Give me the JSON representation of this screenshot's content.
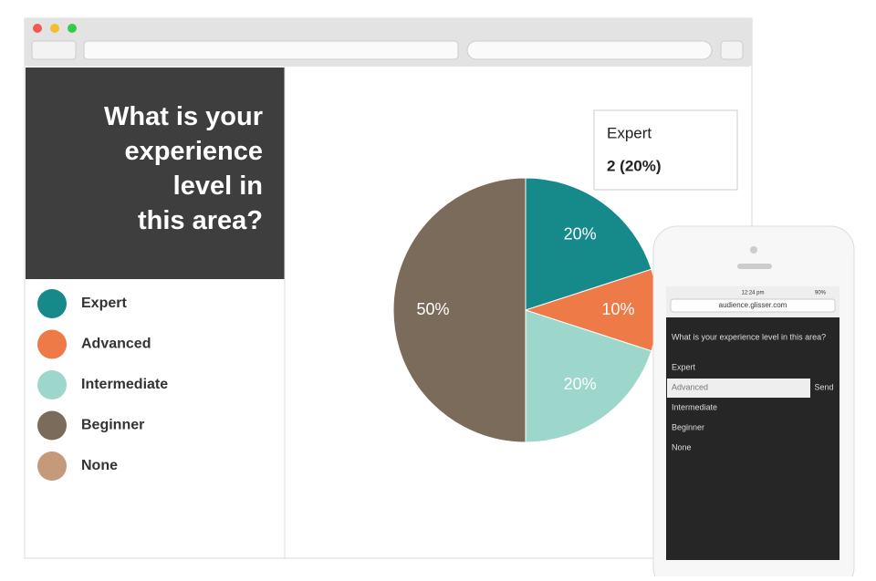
{
  "chart_data": {
    "type": "pie",
    "title": "What is your experience level in this area?",
    "categories": [
      "Expert",
      "Advanced",
      "Intermediate",
      "Beginner",
      "None"
    ],
    "values": [
      20,
      10,
      20,
      50,
      0
    ],
    "value_labels": [
      "20%",
      "10%",
      "20%",
      "50%",
      null
    ],
    "colors": [
      "#16898a",
      "#ee7a47",
      "#9dd6cb",
      "#7b6b5b",
      "#c49a7a"
    ]
  },
  "tooltip": {
    "title": "Expert",
    "text": "2 (20%)"
  },
  "phone": {
    "time": "12:24 pm",
    "battery": "90%",
    "url": "audience.glisser.com",
    "question": "What is your experience level in this area?",
    "options": [
      "Expert",
      "Advanced",
      "Intermediate",
      "Beginner",
      "None"
    ],
    "send": "Send"
  }
}
